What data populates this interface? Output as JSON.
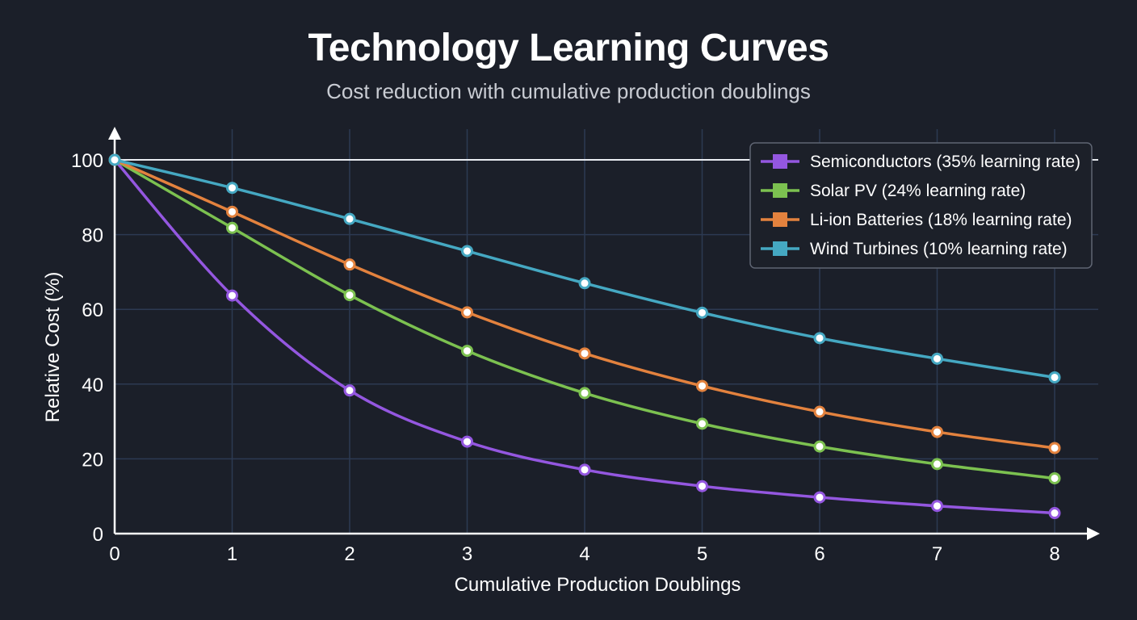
{
  "chart_data": {
    "type": "line",
    "title": "Technology Learning Curves",
    "subtitle": "Cost reduction with cumulative production doublings",
    "xlabel": "Cumulative Production Doublings",
    "ylabel": "Relative Cost (%)",
    "x": [
      0,
      1,
      2,
      3,
      4,
      5,
      6,
      7,
      8
    ],
    "xlim": [
      0,
      8
    ],
    "ylim": [
      0,
      100
    ],
    "x_ticks": [
      "0",
      "1",
      "2",
      "3",
      "4",
      "5",
      "6",
      "7",
      "8"
    ],
    "y_ticks": [
      "0",
      "20",
      "40",
      "60",
      "80",
      "100"
    ],
    "grid": true,
    "legend_position": "top-right",
    "series": [
      {
        "name": "Semiconductors (35% learning rate)",
        "color": "#9457e0",
        "values": [
          100,
          63.7,
          38.3,
          24.6,
          17.1,
          12.7,
          9.7,
          7.4,
          5.5
        ]
      },
      {
        "name": "Solar PV (24% learning rate)",
        "color": "#7cc150",
        "values": [
          100,
          81.8,
          63.8,
          48.9,
          37.6,
          29.4,
          23.3,
          18.6,
          14.8
        ]
      },
      {
        "name": "Li-ion Batteries (18% learning rate)",
        "color": "#e3823e",
        "values": [
          100,
          86.1,
          72.0,
          59.2,
          48.2,
          39.5,
          32.6,
          27.2,
          22.9
        ]
      },
      {
        "name": "Wind Turbines (10% learning rate)",
        "color": "#45a8c2",
        "values": [
          100,
          92.5,
          84.2,
          75.6,
          67.0,
          59.1,
          52.3,
          46.8,
          41.8
        ]
      }
    ]
  }
}
